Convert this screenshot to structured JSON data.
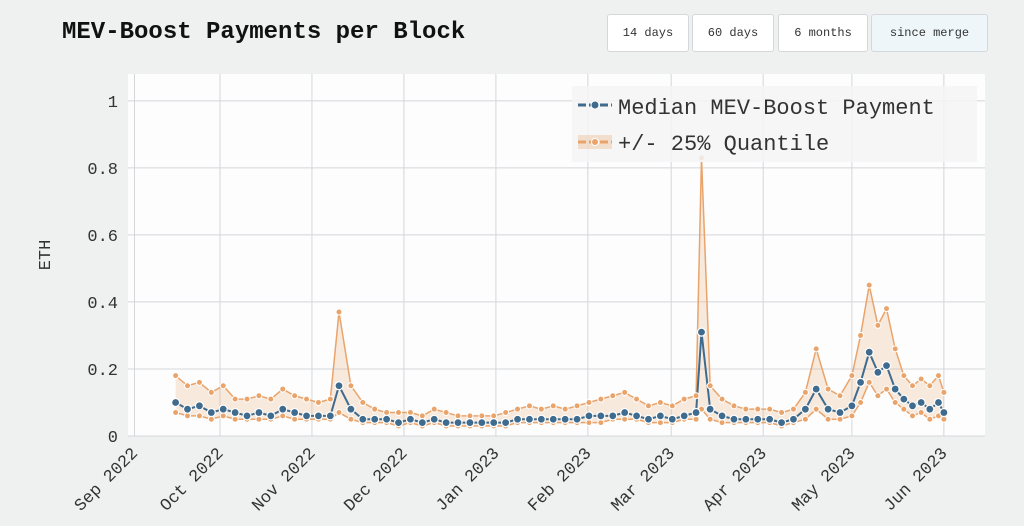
{
  "controls": {
    "buttons": [
      "14 days",
      "60 days",
      "6 months",
      "since merge"
    ]
  },
  "chart_data": {
    "type": "line",
    "title": "MEV-Boost Payments per Block",
    "y_label": "ETH",
    "xlim": [
      2022.66,
      2023.452
    ],
    "xticks": [
      {
        "value": 2022.666,
        "label": "Sep 2022"
      },
      {
        "value": 2022.745,
        "label": "Oct 2022"
      },
      {
        "value": 2022.83,
        "label": "Nov 2022"
      },
      {
        "value": 2022.915,
        "label": "Dec 2022"
      },
      {
        "value": 2023.0,
        "label": "Jan 2023"
      },
      {
        "value": 2023.085,
        "label": "Feb 2023"
      },
      {
        "value": 2023.162,
        "label": "Mar 2023"
      },
      {
        "value": 2023.247,
        "label": "Apr 2023"
      },
      {
        "value": 2023.329,
        "label": "May 2023"
      },
      {
        "value": 2023.414,
        "label": "Jun 2023"
      }
    ],
    "ylim": [
      0,
      1.08
    ],
    "yticks": [
      0,
      0.2,
      0.4,
      0.6,
      0.8,
      1
    ],
    "grid": true,
    "legend": "top-right",
    "x": [
      2022.704,
      2022.715,
      2022.726,
      2022.737,
      2022.748,
      2022.759,
      2022.77,
      2022.781,
      2022.792,
      2022.803,
      2022.814,
      2022.825,
      2022.836,
      2022.847,
      2022.855,
      2022.866,
      2022.877,
      2022.888,
      2022.899,
      2022.91,
      2022.921,
      2022.932,
      2022.943,
      2022.954,
      2022.965,
      2022.976,
      2022.987,
      2022.998,
      2023.009,
      2023.02,
      2023.031,
      2023.042,
      2023.053,
      2023.064,
      2023.075,
      2023.086,
      2023.097,
      2023.108,
      2023.119,
      2023.13,
      2023.141,
      2023.152,
      2023.163,
      2023.174,
      2023.185,
      2023.19,
      2023.198,
      2023.209,
      2023.22,
      2023.231,
      2023.242,
      2023.253,
      2023.264,
      2023.275,
      2023.286,
      2023.296,
      2023.307,
      2023.318,
      2023.329,
      2023.337,
      2023.345,
      2023.353,
      2023.361,
      2023.369,
      2023.377,
      2023.385,
      2023.393,
      2023.401,
      2023.409,
      2023.414
    ],
    "series": [
      {
        "name": "Median MEV-Boost Payment",
        "color": "#3f6b8e",
        "values": [
          0.1,
          0.08,
          0.09,
          0.07,
          0.08,
          0.07,
          0.06,
          0.07,
          0.06,
          0.08,
          0.07,
          0.06,
          0.06,
          0.06,
          0.15,
          0.08,
          0.05,
          0.05,
          0.05,
          0.04,
          0.05,
          0.04,
          0.05,
          0.04,
          0.04,
          0.04,
          0.04,
          0.04,
          0.04,
          0.05,
          0.05,
          0.05,
          0.05,
          0.05,
          0.05,
          0.06,
          0.06,
          0.06,
          0.07,
          0.06,
          0.05,
          0.06,
          0.05,
          0.06,
          0.07,
          0.31,
          0.08,
          0.06,
          0.05,
          0.05,
          0.05,
          0.05,
          0.04,
          0.05,
          0.08,
          0.14,
          0.08,
          0.07,
          0.09,
          0.16,
          0.25,
          0.19,
          0.21,
          0.14,
          0.11,
          0.09,
          0.1,
          0.08,
          0.1,
          0.07
        ]
      },
      {
        "name": "+/- 25% Quantile",
        "color": "#e9a46c",
        "upper": [
          0.18,
          0.15,
          0.16,
          0.13,
          0.15,
          0.11,
          0.11,
          0.12,
          0.11,
          0.14,
          0.12,
          0.11,
          0.1,
          0.11,
          0.37,
          0.15,
          0.1,
          0.08,
          0.07,
          0.07,
          0.07,
          0.06,
          0.08,
          0.07,
          0.06,
          0.06,
          0.06,
          0.06,
          0.07,
          0.08,
          0.09,
          0.08,
          0.09,
          0.08,
          0.09,
          0.1,
          0.11,
          0.12,
          0.13,
          0.11,
          0.09,
          0.1,
          0.09,
          0.11,
          0.12,
          0.83,
          0.15,
          0.11,
          0.09,
          0.08,
          0.08,
          0.08,
          0.07,
          0.08,
          0.13,
          0.26,
          0.14,
          0.12,
          0.18,
          0.3,
          0.45,
          0.33,
          0.38,
          0.26,
          0.18,
          0.15,
          0.17,
          0.15,
          0.18,
          0.13
        ],
        "lower": [
          0.07,
          0.06,
          0.06,
          0.05,
          0.06,
          0.05,
          0.05,
          0.05,
          0.05,
          0.06,
          0.05,
          0.05,
          0.05,
          0.05,
          0.07,
          0.05,
          0.04,
          0.04,
          0.04,
          0.03,
          0.04,
          0.03,
          0.04,
          0.03,
          0.03,
          0.03,
          0.03,
          0.03,
          0.03,
          0.04,
          0.04,
          0.04,
          0.04,
          0.04,
          0.04,
          0.04,
          0.04,
          0.05,
          0.05,
          0.05,
          0.04,
          0.04,
          0.04,
          0.05,
          0.05,
          0.08,
          0.05,
          0.04,
          0.04,
          0.04,
          0.04,
          0.04,
          0.03,
          0.04,
          0.05,
          0.08,
          0.05,
          0.05,
          0.06,
          0.1,
          0.16,
          0.12,
          0.14,
          0.1,
          0.08,
          0.06,
          0.07,
          0.05,
          0.06,
          0.05
        ]
      }
    ]
  }
}
